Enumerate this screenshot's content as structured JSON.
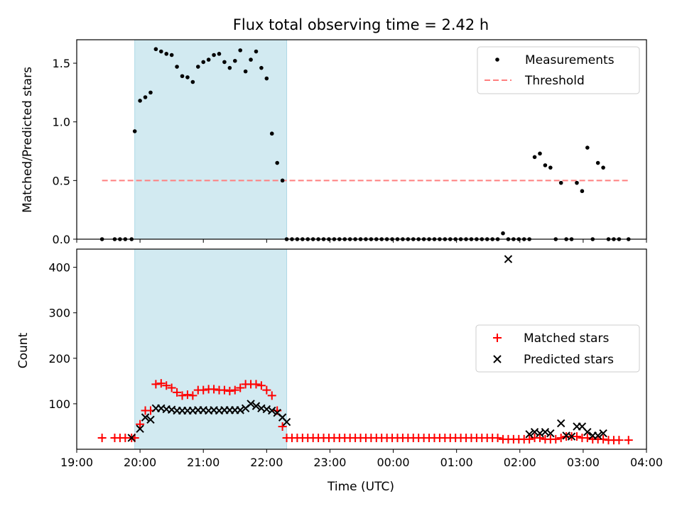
{
  "title": "Flux total observing time = 2.42 h",
  "colors": {
    "shade": "#add8e6",
    "measurement": "#000000",
    "threshold": "#ff7f7f",
    "matched": "#ff0000",
    "predicted": "#000000"
  },
  "chart_data": [
    {
      "type": "scatter",
      "panel": "top",
      "xlabel": "",
      "ylabel": "Matched/Predicted stars",
      "ylim": [
        0,
        1.7
      ],
      "yticks": [
        "0.0",
        "0.5",
        "1.0",
        "1.5"
      ],
      "xlim": [
        "19:00",
        "04:00"
      ],
      "shaded_span": [
        "19:55",
        "22:19"
      ],
      "legend": {
        "placement": "top-right",
        "entries": [
          "Measurements",
          "Threshold"
        ]
      },
      "threshold": {
        "name": "Threshold",
        "value": 0.5,
        "x": [
          "19:24",
          "03:43"
        ]
      },
      "series": [
        {
          "name": "Measurements",
          "x": [
            "19:24",
            "19:36",
            "19:41",
            "19:46",
            "19:52",
            "19:55",
            "20:00",
            "20:05",
            "20:10",
            "20:15",
            "20:20",
            "20:25",
            "20:30",
            "20:35",
            "20:40",
            "20:45",
            "20:50",
            "20:55",
            "21:00",
            "21:05",
            "21:10",
            "21:15",
            "21:20",
            "21:25",
            "21:30",
            "21:35",
            "21:40",
            "21:45",
            "21:50",
            "21:55",
            "22:00",
            "22:05",
            "22:10",
            "22:15",
            "22:19",
            "22:24",
            "22:29",
            "22:34",
            "22:39",
            "22:44",
            "22:49",
            "22:54",
            "22:59",
            "23:04",
            "23:09",
            "23:14",
            "23:19",
            "23:24",
            "23:29",
            "23:34",
            "23:39",
            "23:44",
            "23:49",
            "23:54",
            "23:59",
            "00:04",
            "00:09",
            "00:14",
            "00:19",
            "00:24",
            "00:29",
            "00:34",
            "00:39",
            "00:44",
            "00:49",
            "00:54",
            "00:59",
            "01:04",
            "01:09",
            "01:14",
            "01:19",
            "01:24",
            "01:29",
            "01:34",
            "01:39",
            "01:44",
            "01:49",
            "01:54",
            "01:59",
            "02:04",
            "02:09",
            "02:14",
            "02:19",
            "02:24",
            "02:29",
            "02:34",
            "02:39",
            "02:44",
            "02:49",
            "02:54",
            "02:59",
            "03:04",
            "03:09",
            "03:14",
            "03:19",
            "03:24",
            "03:29",
            "03:34",
            "03:43"
          ],
          "y": [
            0,
            0,
            0,
            0,
            0,
            0.92,
            1.18,
            1.21,
            1.25,
            1.62,
            1.6,
            1.58,
            1.57,
            1.47,
            1.39,
            1.38,
            1.34,
            1.47,
            1.51,
            1.53,
            1.57,
            1.58,
            1.51,
            1.46,
            1.52,
            1.61,
            1.43,
            1.53,
            1.6,
            1.46,
            1.37,
            0.9,
            0.65,
            0.5,
            0,
            0,
            0,
            0,
            0,
            0,
            0,
            0,
            0,
            0,
            0,
            0,
            0,
            0,
            0,
            0,
            0,
            0,
            0,
            0,
            0,
            0,
            0,
            0,
            0,
            0,
            0,
            0,
            0,
            0,
            0,
            0,
            0,
            0,
            0,
            0,
            0,
            0,
            0,
            0,
            0,
            0.05,
            0,
            0,
            0,
            0,
            0,
            0.7,
            0.73,
            0.63,
            0.61,
            0,
            0.48,
            0,
            0,
            0.48,
            0.41,
            0.78,
            0,
            0.65,
            0.61,
            0,
            0,
            0,
            0
          ]
        }
      ]
    },
    {
      "type": "scatter",
      "panel": "bottom",
      "xlabel": "Time (UTC)",
      "ylabel": "Count",
      "ylim": [
        0,
        440
      ],
      "yticks": [
        "100",
        "200",
        "300",
        "400"
      ],
      "xlim": [
        "19:00",
        "04:00"
      ],
      "xticks": [
        "19:00",
        "20:00",
        "21:00",
        "22:00",
        "23:00",
        "00:00",
        "01:00",
        "02:00",
        "03:00",
        "04:00"
      ],
      "shaded_span": [
        "19:55",
        "22:19"
      ],
      "legend": {
        "placement": "center-right",
        "entries": [
          "Matched stars",
          "Predicted stars"
        ]
      },
      "series": [
        {
          "name": "Matched stars",
          "x": [
            "19:24",
            "19:36",
            "19:41",
            "19:46",
            "19:52",
            "19:55",
            "20:00",
            "20:05",
            "20:10",
            "20:15",
            "20:20",
            "20:25",
            "20:30",
            "20:35",
            "20:40",
            "20:45",
            "20:50",
            "20:55",
            "21:00",
            "21:05",
            "21:10",
            "21:15",
            "21:20",
            "21:25",
            "21:30",
            "21:35",
            "21:40",
            "21:45",
            "21:50",
            "21:55",
            "22:00",
            "22:05",
            "22:10",
            "22:15",
            "22:19",
            "22:24",
            "22:29",
            "22:34",
            "22:39",
            "22:44",
            "22:49",
            "22:54",
            "22:59",
            "23:04",
            "23:09",
            "23:14",
            "23:19",
            "23:24",
            "23:29",
            "23:34",
            "23:39",
            "23:44",
            "23:49",
            "23:54",
            "23:59",
            "00:04",
            "00:09",
            "00:14",
            "00:19",
            "00:24",
            "00:29",
            "00:34",
            "00:39",
            "00:44",
            "00:49",
            "00:54",
            "00:59",
            "01:04",
            "01:09",
            "01:14",
            "01:19",
            "01:24",
            "01:29",
            "01:34",
            "01:39",
            "01:44",
            "01:49",
            "01:54",
            "01:59",
            "02:04",
            "02:09",
            "02:14",
            "02:19",
            "02:24",
            "02:29",
            "02:34",
            "02:39",
            "02:44",
            "02:49",
            "02:54",
            "02:59",
            "03:04",
            "03:09",
            "03:14",
            "03:19",
            "03:24",
            "03:29",
            "03:34",
            "03:43"
          ],
          "y": [
            25,
            25,
            25,
            25,
            25,
            25,
            55,
            85,
            85,
            143,
            145,
            140,
            135,
            125,
            118,
            120,
            118,
            130,
            130,
            132,
            132,
            130,
            130,
            128,
            130,
            135,
            143,
            143,
            143,
            140,
            130,
            118,
            85,
            50,
            25,
            25,
            25,
            25,
            25,
            25,
            25,
            25,
            25,
            25,
            25,
            25,
            25,
            25,
            25,
            25,
            25,
            25,
            25,
            25,
            25,
            25,
            25,
            25,
            25,
            25,
            25,
            25,
            25,
            25,
            25,
            25,
            25,
            25,
            25,
            25,
            25,
            25,
            25,
            25,
            25,
            22,
            22,
            22,
            22,
            22,
            22,
            25,
            25,
            22,
            22,
            22,
            25,
            28,
            28,
            28,
            25,
            25,
            22,
            22,
            22,
            20,
            20,
            20,
            20
          ]
        },
        {
          "name": "Predicted stars",
          "x": [
            "19:52",
            "20:00",
            "20:05",
            "20:10",
            "20:15",
            "20:20",
            "20:25",
            "20:30",
            "20:35",
            "20:40",
            "20:45",
            "20:50",
            "20:55",
            "21:00",
            "21:05",
            "21:10",
            "21:15",
            "21:20",
            "21:25",
            "21:30",
            "21:35",
            "21:40",
            "21:45",
            "21:50",
            "21:55",
            "22:00",
            "22:05",
            "22:10",
            "22:15",
            "22:19",
            "01:49",
            "02:09",
            "02:14",
            "02:19",
            "02:24",
            "02:29",
            "02:39",
            "02:44",
            "02:49",
            "02:54",
            "02:59",
            "03:04",
            "03:09",
            "03:14",
            "03:19"
          ],
          "y": [
            25,
            45,
            70,
            65,
            90,
            90,
            88,
            87,
            85,
            85,
            85,
            85,
            86,
            86,
            85,
            86,
            85,
            86,
            86,
            86,
            86,
            90,
            100,
            95,
            90,
            88,
            85,
            80,
            70,
            60,
            418,
            33,
            38,
            35,
            38,
            35,
            57,
            30,
            28,
            50,
            50,
            38,
            30,
            30,
            35
          ]
        }
      ]
    }
  ]
}
